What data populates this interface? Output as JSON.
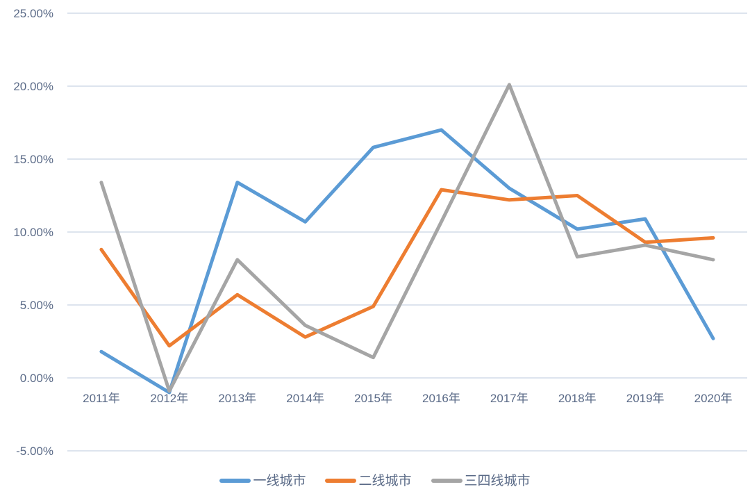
{
  "chart_data": {
    "type": "line",
    "title": "",
    "categories": [
      "2011年",
      "2012年",
      "2013年",
      "2014年",
      "2015年",
      "2016年",
      "2017年",
      "2018年",
      "2019年",
      "2020年"
    ],
    "series": [
      {
        "name": "一线城市",
        "color": "#5B9BD5",
        "values": [
          1.8,
          -1.0,
          13.4,
          10.7,
          15.8,
          17.0,
          13.0,
          10.2,
          10.9,
          2.7
        ]
      },
      {
        "name": "二线城市",
        "color": "#ED7D31",
        "values": [
          8.8,
          2.2,
          5.7,
          2.8,
          4.9,
          12.9,
          12.2,
          12.5,
          9.3,
          9.6
        ]
      },
      {
        "name": "三四线城市",
        "color": "#A5A5A5",
        "values": [
          13.4,
          -0.9,
          8.1,
          3.6,
          1.4,
          10.7,
          20.1,
          8.3,
          9.1,
          8.1
        ]
      }
    ],
    "ylim": [
      -5,
      25
    ],
    "y_tick_step": 5,
    "y_tick_labels": [
      "25.00%",
      "20.00%",
      "15.00%",
      "10.00%",
      "5.00%",
      "0.00%",
      "-5.00%"
    ],
    "xlabel": "",
    "ylabel": "",
    "grid": "horizontal",
    "legend_position": "bottom"
  },
  "style": {
    "background_color": "#ffffff",
    "grid_color": "#dde4ee",
    "label_color": "#5a6a87"
  }
}
